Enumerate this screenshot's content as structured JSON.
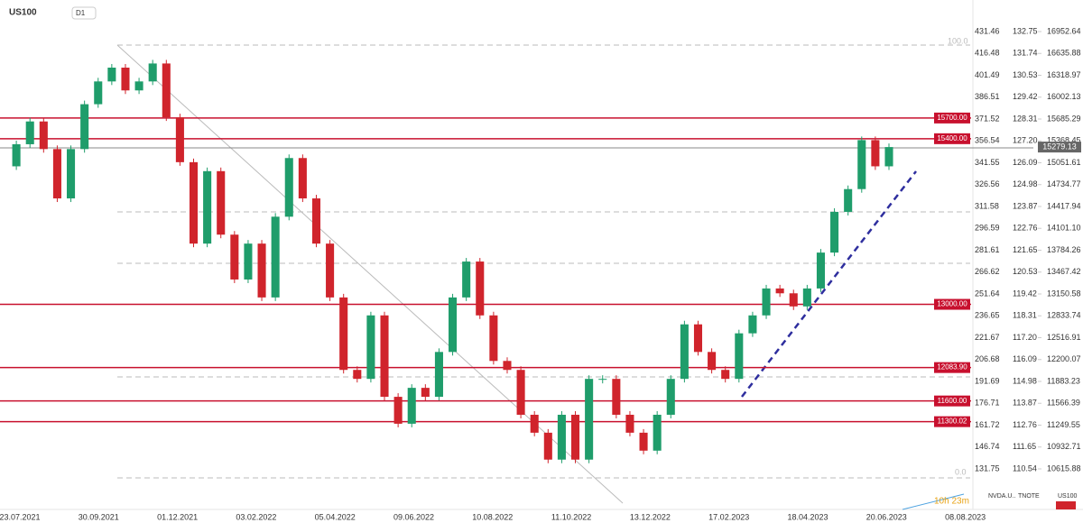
{
  "header": {
    "symbol": "US100",
    "timeframe": "D1"
  },
  "chart_data": {
    "type": "candlestick",
    "up_color": "#1f9d6b",
    "down_color": "#d0242c",
    "values": [
      15000,
      15320,
      15650,
      15250,
      14535,
      15250,
      15900,
      16230,
      16430,
      16100,
      16230,
      16490,
      15710,
      15060,
      13880,
      14930,
      14010,
      13360,
      13880,
      13100,
      14270,
      15120,
      14535,
      13880,
      13100,
      12050,
      11920,
      12840,
      11660,
      11270,
      11790,
      11660,
      12310,
      13100,
      13620,
      12840,
      12180,
      12050,
      11400,
      11140,
      10750,
      11400,
      10750,
      11920,
      11920,
      11400,
      11140,
      10880,
      11400,
      11920,
      12710,
      12310,
      12050,
      11920,
      12580,
      12840,
      13230,
      13160,
      12970,
      13230,
      13750,
      14340,
      14670,
      15380,
      15000,
      15279.13
    ],
    "ylim": [
      10067,
      17410
    ],
    "yticks": [
      16952.64,
      16635.88,
      16318.97,
      16002.13,
      15685.29,
      15368.45,
      15051.61,
      14734.77,
      14417.94,
      {
        "value": 14101.1,
        "label": "14101.10"
      },
      13784.26,
      13467.42,
      13150.58,
      12833.74,
      12516.91,
      12200.07,
      11883.23,
      11566.39,
      11249.55,
      10932.71,
      10615.88
    ],
    "levels": [
      {
        "value": 15700,
        "label": "15700.00"
      },
      {
        "value": 15400,
        "label": "15400.00"
      },
      {
        "value": 13000,
        "label": "13000.00"
      },
      {
        "value": 12083.9,
        "label": "12083.90"
      },
      {
        "value": 11600,
        "label": "11600.00"
      },
      {
        "value": 11300.02,
        "label": "11300.02"
      }
    ],
    "level_color": "#c8102e",
    "x_labels": [
      "23.07.2021",
      "30.09.2021",
      "01.12.2021",
      "03.02.2022",
      "05.04.2022",
      "09.06.2022",
      "10.08.2022",
      "11.10.2022",
      "13.12.2022",
      "17.02.2023",
      "18.04.2023",
      "20.06.2023",
      "08.08.2023"
    ],
    "secondary_axes": [
      [
        "431.46",
        "416.48",
        "401.49",
        "386.51",
        "371.52",
        "356.54",
        "341.55",
        "326.56",
        "311.58",
        "296.59",
        "281.61",
        "266.62",
        "251.64",
        "236.65",
        "221.67",
        "206.68",
        "191.69",
        "176.71",
        "161.72",
        "146.74",
        "131.75"
      ],
      [
        "132.75",
        "131.74",
        "130.53",
        "129.42",
        "128.31",
        "127.20",
        "126.09",
        "124.98",
        "123.87",
        "122.76",
        "121.65",
        "120.53",
        "119.42",
        "118.31",
        "117.20",
        "116.09",
        "114.98",
        "113.87",
        "112.76",
        "111.65",
        "110.54"
      ]
    ]
  },
  "fib_labels": [
    "100.0",
    "0.0"
  ],
  "countdown": "10h 23m",
  "tabs": [
    "NVDA.U..",
    "TNOTE",
    "US100"
  ]
}
